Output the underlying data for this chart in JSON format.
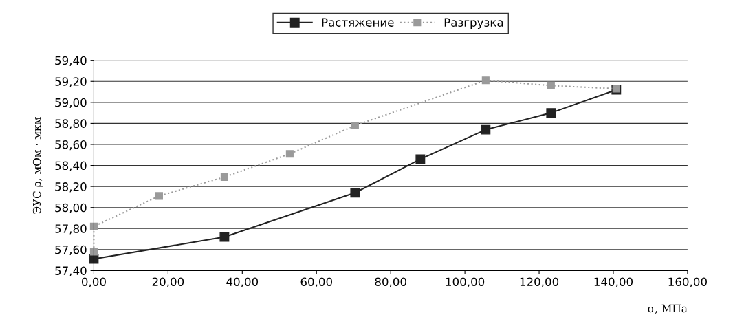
{
  "chart_data": {
    "type": "line",
    "xlabel": "σ, МПа",
    "ylabel": "ЭУС ρ, мОм · мкм",
    "series": [
      {
        "name": "Растяжение",
        "color": "#222222",
        "line_style": "solid",
        "x": [
          0,
          35.2,
          70.4,
          88,
          105.6,
          123.2,
          140.8
        ],
        "values": [
          57.51,
          57.72,
          58.14,
          58.46,
          58.74,
          58.9,
          59.12
        ]
      },
      {
        "name": "Разгрузка",
        "color": "#9a9a9a",
        "line_style": "dotted",
        "x": [
          0,
          0,
          17.6,
          35.2,
          52.8,
          70.4,
          105.6,
          123.2,
          140.8
        ],
        "values": [
          57.58,
          57.82,
          58.11,
          58.29,
          58.51,
          58.78,
          59.21,
          59.16,
          59.13
        ]
      }
    ],
    "xlim": [
      0,
      160
    ],
    "ylim": [
      57.4,
      59.4
    ],
    "xticks": [
      {
        "value": 0,
        "label": "0,00"
      },
      {
        "value": 20,
        "label": "20,00"
      },
      {
        "value": 40,
        "label": "40,00"
      },
      {
        "value": 60,
        "label": "60,00"
      },
      {
        "value": 80,
        "label": "80,00"
      },
      {
        "value": 100,
        "label": "100,00"
      },
      {
        "value": 120,
        "label": "120,00"
      },
      {
        "value": 140,
        "label": "140,00"
      },
      {
        "value": 160,
        "label": "160,00"
      }
    ],
    "yticks": [
      {
        "value": 57.4,
        "label": "57,40"
      },
      {
        "value": 57.6,
        "label": "57,60"
      },
      {
        "value": 57.8,
        "label": "57,80"
      },
      {
        "value": 58.0,
        "label": "58,00"
      },
      {
        "value": 58.2,
        "label": "58,20"
      },
      {
        "value": 58.4,
        "label": "58,40"
      },
      {
        "value": 58.6,
        "label": "58,60"
      },
      {
        "value": 58.8,
        "label": "58,80"
      },
      {
        "value": 59.0,
        "label": "59,00"
      },
      {
        "value": 59.2,
        "label": "59,20"
      },
      {
        "value": 59.4,
        "label": "59,40"
      }
    ],
    "grid": "y",
    "legend": "top",
    "marker": "square"
  }
}
